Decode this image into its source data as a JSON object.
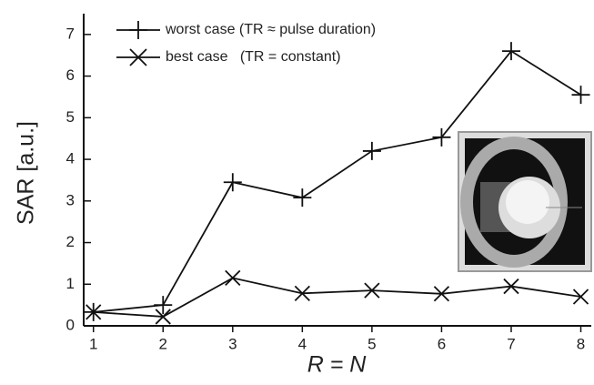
{
  "chart_data": {
    "type": "line",
    "x_label": "R = N",
    "y_label": "SAR [a.u.]",
    "x": [
      1,
      2,
      3,
      4,
      5,
      6,
      7,
      8
    ],
    "series": [
      {
        "name": "worst case (TR ≈ pulse duration)",
        "color": "#111111",
        "marker": "+",
        "values": [
          0.33,
          0.5,
          3.45,
          3.08,
          4.2,
          4.53,
          6.6,
          5.55
        ]
      },
      {
        "name": "best case   (TR = constant)",
        "color": "#111111",
        "marker": "x",
        "values": [
          0.33,
          0.22,
          1.15,
          0.78,
          0.85,
          0.77,
          0.95,
          0.7
        ]
      }
    ],
    "xlim": [
      0.86,
      8.15
    ],
    "ylim": [
      0,
      7.5
    ],
    "xticks": [
      1,
      2,
      3,
      4,
      5,
      6,
      7,
      8
    ],
    "yticks": [
      0,
      1,
      2,
      3,
      4,
      5,
      6,
      7
    ],
    "legend": "upper left",
    "grid": false
  }
}
